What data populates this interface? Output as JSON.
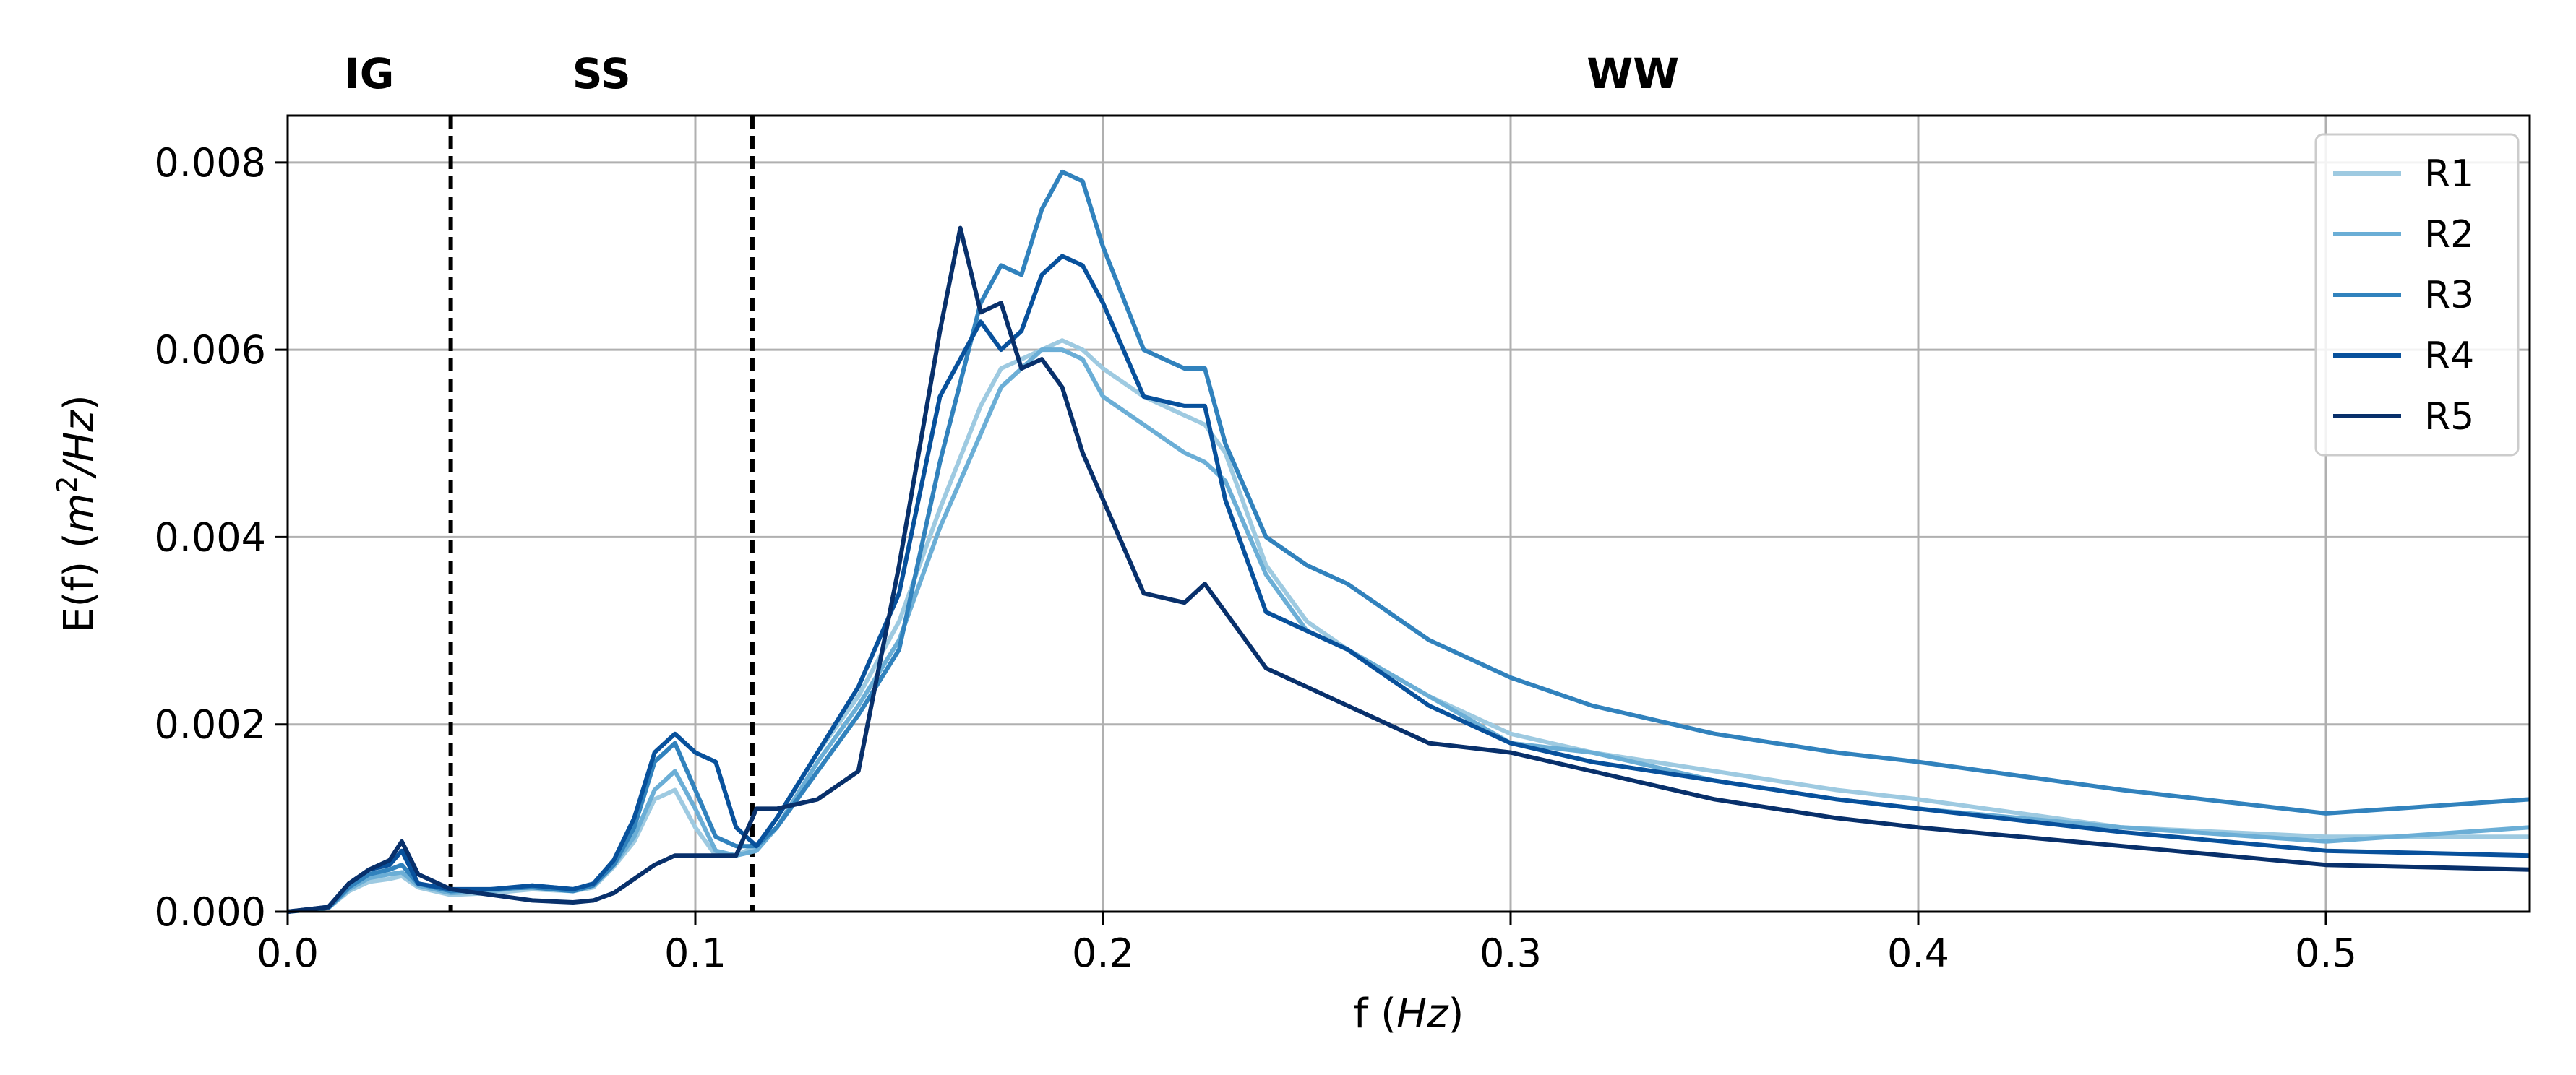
{
  "chart_data": {
    "type": "line",
    "title": "",
    "xlabel": "f (Hz)",
    "ylabel": "E(f) (m²/Hz)",
    "xlim": [
      0,
      0.55
    ],
    "ylim": [
      0,
      0.0085
    ],
    "x_ticks": [
      "0.0",
      "0.1",
      "0.2",
      "0.3",
      "0.4",
      "0.5"
    ],
    "x_tick_values": [
      0,
      0.1,
      0.2,
      0.3,
      0.4,
      0.5
    ],
    "y_ticks": [
      "0.000",
      "0.002",
      "0.004",
      "0.006",
      "0.008"
    ],
    "y_tick_values": [
      0,
      0.002,
      0.004,
      0.006,
      0.008
    ],
    "grid": true,
    "legend_position": "top-right",
    "regions": [
      {
        "label": "IG",
        "x_center": 0.02
      },
      {
        "label": "SS",
        "x_center": 0.077
      },
      {
        "label": "WW",
        "x_center": 0.33
      }
    ],
    "vlines": [
      0.04,
      0.114
    ],
    "series": [
      {
        "name": "R1",
        "color": "#9ecae1",
        "x": [
          0,
          0.01,
          0.015,
          0.02,
          0.025,
          0.028,
          0.032,
          0.04,
          0.05,
          0.06,
          0.07,
          0.075,
          0.08,
          0.085,
          0.09,
          0.095,
          0.1,
          0.105,
          0.11,
          0.115,
          0.12,
          0.13,
          0.14,
          0.15,
          0.16,
          0.17,
          0.175,
          0.18,
          0.185,
          0.19,
          0.195,
          0.2,
          0.21,
          0.22,
          0.225,
          0.23,
          0.24,
          0.25,
          0.26,
          0.28,
          0.3,
          0.32,
          0.35,
          0.38,
          0.4,
          0.45,
          0.5,
          0.55
        ],
        "values": [
          0,
          4e-05,
          0.00022,
          0.00032,
          0.00035,
          0.00038,
          0.00026,
          0.00018,
          0.0002,
          0.00024,
          0.00022,
          0.00026,
          0.00048,
          0.00075,
          0.0012,
          0.0013,
          0.0009,
          0.0006,
          0.0006,
          0.0007,
          0.001,
          0.0017,
          0.0023,
          0.0031,
          0.0043,
          0.0054,
          0.0058,
          0.0059,
          0.006,
          0.0061,
          0.006,
          0.0058,
          0.0055,
          0.0053,
          0.0052,
          0.0049,
          0.0037,
          0.0031,
          0.0028,
          0.0023,
          0.0019,
          0.0017,
          0.0015,
          0.0013,
          0.0012,
          0.0009,
          0.0008,
          0.0008
        ]
      },
      {
        "name": "R2",
        "color": "#6baed6",
        "x": [
          0,
          0.01,
          0.015,
          0.02,
          0.025,
          0.028,
          0.032,
          0.04,
          0.05,
          0.06,
          0.07,
          0.075,
          0.08,
          0.085,
          0.09,
          0.095,
          0.1,
          0.105,
          0.11,
          0.115,
          0.12,
          0.13,
          0.14,
          0.15,
          0.16,
          0.17,
          0.175,
          0.18,
          0.185,
          0.19,
          0.195,
          0.2,
          0.21,
          0.22,
          0.225,
          0.23,
          0.24,
          0.25,
          0.26,
          0.28,
          0.3,
          0.32,
          0.35,
          0.38,
          0.4,
          0.45,
          0.5,
          0.55
        ],
        "values": [
          0,
          4e-05,
          0.00024,
          0.00036,
          0.0004,
          0.00042,
          0.00028,
          0.0002,
          0.00022,
          0.00028,
          0.00024,
          0.00028,
          0.0005,
          0.0008,
          0.0013,
          0.0015,
          0.0011,
          0.00065,
          0.0006,
          0.00065,
          0.0009,
          0.0016,
          0.0022,
          0.0029,
          0.0041,
          0.0051,
          0.0056,
          0.0058,
          0.006,
          0.006,
          0.0059,
          0.0055,
          0.0052,
          0.0049,
          0.0048,
          0.0046,
          0.0036,
          0.003,
          0.0028,
          0.0023,
          0.0018,
          0.0017,
          0.0014,
          0.0012,
          0.0011,
          0.0009,
          0.00075,
          0.0009
        ]
      },
      {
        "name": "R3",
        "color": "#3182bd",
        "x": [
          0,
          0.01,
          0.015,
          0.02,
          0.025,
          0.028,
          0.032,
          0.04,
          0.05,
          0.06,
          0.07,
          0.075,
          0.08,
          0.085,
          0.09,
          0.095,
          0.1,
          0.105,
          0.11,
          0.115,
          0.12,
          0.13,
          0.14,
          0.15,
          0.16,
          0.17,
          0.175,
          0.18,
          0.185,
          0.19,
          0.195,
          0.2,
          0.21,
          0.22,
          0.225,
          0.23,
          0.24,
          0.25,
          0.26,
          0.28,
          0.3,
          0.32,
          0.35,
          0.38,
          0.4,
          0.45,
          0.5,
          0.55
        ],
        "values": [
          0,
          4e-05,
          0.00026,
          0.0004,
          0.00045,
          0.0005,
          0.0003,
          0.00022,
          0.00024,
          0.00026,
          0.00022,
          0.00028,
          0.0005,
          0.0009,
          0.0016,
          0.0018,
          0.0013,
          0.0008,
          0.0007,
          0.0007,
          0.0009,
          0.0015,
          0.0021,
          0.0028,
          0.0048,
          0.0065,
          0.0069,
          0.0068,
          0.0075,
          0.0079,
          0.0078,
          0.0071,
          0.006,
          0.0058,
          0.0058,
          0.005,
          0.004,
          0.0037,
          0.0035,
          0.0029,
          0.0025,
          0.0022,
          0.0019,
          0.0017,
          0.0016,
          0.0013,
          0.00105,
          0.0012
        ]
      },
      {
        "name": "R4",
        "color": "#08519c",
        "x": [
          0,
          0.01,
          0.015,
          0.02,
          0.025,
          0.028,
          0.032,
          0.04,
          0.05,
          0.06,
          0.07,
          0.075,
          0.08,
          0.085,
          0.09,
          0.095,
          0.1,
          0.105,
          0.11,
          0.115,
          0.12,
          0.13,
          0.14,
          0.15,
          0.16,
          0.17,
          0.175,
          0.18,
          0.185,
          0.19,
          0.195,
          0.2,
          0.21,
          0.22,
          0.225,
          0.23,
          0.24,
          0.25,
          0.26,
          0.28,
          0.3,
          0.32,
          0.35,
          0.38,
          0.4,
          0.45,
          0.5,
          0.55
        ],
        "values": [
          0,
          5e-05,
          0.0003,
          0.00045,
          0.0005,
          0.00065,
          0.0003,
          0.00024,
          0.00024,
          0.00028,
          0.00024,
          0.0003,
          0.00055,
          0.001,
          0.0017,
          0.0019,
          0.0017,
          0.0016,
          0.0009,
          0.0007,
          0.001,
          0.0017,
          0.0024,
          0.0034,
          0.0055,
          0.0063,
          0.006,
          0.0062,
          0.0068,
          0.007,
          0.0069,
          0.0065,
          0.0055,
          0.0054,
          0.0054,
          0.0044,
          0.0032,
          0.003,
          0.0028,
          0.0022,
          0.0018,
          0.0016,
          0.0014,
          0.0012,
          0.0011,
          0.00085,
          0.00065,
          0.0006
        ]
      },
      {
        "name": "R5",
        "color": "#08306b",
        "x": [
          0,
          0.01,
          0.015,
          0.02,
          0.025,
          0.028,
          0.032,
          0.04,
          0.05,
          0.06,
          0.07,
          0.075,
          0.08,
          0.085,
          0.09,
          0.095,
          0.1,
          0.105,
          0.11,
          0.115,
          0.12,
          0.13,
          0.14,
          0.15,
          0.16,
          0.165,
          0.17,
          0.175,
          0.18,
          0.185,
          0.19,
          0.195,
          0.2,
          0.21,
          0.22,
          0.225,
          0.23,
          0.24,
          0.25,
          0.26,
          0.28,
          0.3,
          0.32,
          0.35,
          0.38,
          0.4,
          0.45,
          0.5,
          0.55
        ],
        "values": [
          0,
          5e-05,
          0.0003,
          0.00045,
          0.00055,
          0.00075,
          0.0004,
          0.00024,
          0.00018,
          0.00012,
          0.0001,
          0.00012,
          0.0002,
          0.00035,
          0.0005,
          0.0006,
          0.0006,
          0.0006,
          0.0006,
          0.0011,
          0.0011,
          0.0012,
          0.0015,
          0.0037,
          0.0062,
          0.0073,
          0.0064,
          0.0065,
          0.0058,
          0.0059,
          0.0056,
          0.0049,
          0.0044,
          0.0034,
          0.0033,
          0.0035,
          0.0032,
          0.0026,
          0.0024,
          0.0022,
          0.0018,
          0.0017,
          0.0015,
          0.0012,
          0.001,
          0.0009,
          0.0007,
          0.0005,
          0.00045
        ]
      }
    ]
  }
}
